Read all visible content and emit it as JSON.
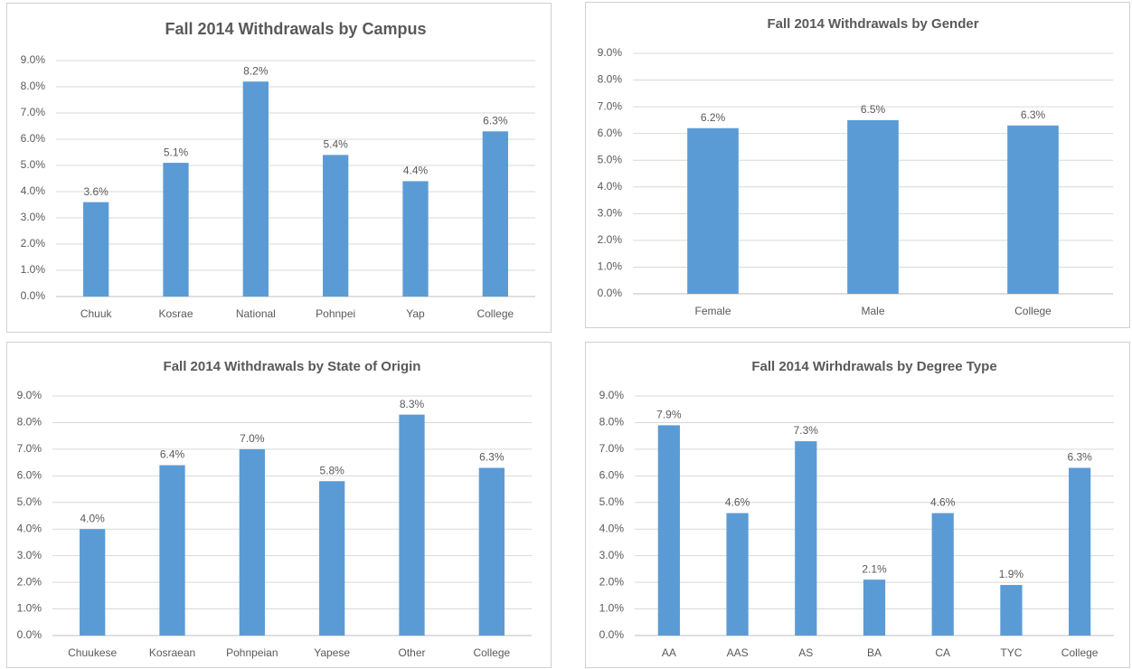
{
  "chart_data": [
    {
      "type": "bar",
      "title": "Fall 2014 Withdrawals by Campus",
      "categories": [
        "Chuuk",
        "Kosrae",
        "National",
        "Pohnpei",
        "Yap",
        "College"
      ],
      "values": [
        3.6,
        5.1,
        8.2,
        5.4,
        4.4,
        6.3
      ],
      "value_labels": [
        "3.6%",
        "5.1%",
        "8.2%",
        "5.4%",
        "4.4%",
        "6.3%"
      ],
      "color": "#5b9bd5",
      "ylim": [
        0,
        9
      ],
      "yticks": [
        {
          "value": 0,
          "label": "0.0%"
        },
        {
          "value": 1,
          "label": "1.0%"
        },
        {
          "value": 2,
          "label": "2.0%"
        },
        {
          "value": 3,
          "label": "3.0%"
        },
        {
          "value": 4,
          "label": "4.0%"
        },
        {
          "value": 5,
          "label": "5.0%"
        },
        {
          "value": 6,
          "label": "6.0%"
        },
        {
          "value": 7,
          "label": "7.0%"
        },
        {
          "value": 8,
          "label": "8.0%"
        },
        {
          "value": 9,
          "label": "9.0%"
        }
      ],
      "grid": true
    },
    {
      "type": "bar",
      "title": "Fall 2014 Withdrawals by Gender",
      "categories": [
        "Female",
        "Male",
        "College"
      ],
      "values": [
        6.2,
        6.5,
        6.3
      ],
      "value_labels": [
        "6.2%",
        "6.5%",
        "6.3%"
      ],
      "color": "#5b9bd5",
      "ylim": [
        0,
        9
      ],
      "yticks": [
        {
          "value": 0,
          "label": "0.0%"
        },
        {
          "value": 1,
          "label": "1.0%"
        },
        {
          "value": 2,
          "label": "2.0%"
        },
        {
          "value": 3,
          "label": "3.0%"
        },
        {
          "value": 4,
          "label": "4.0%"
        },
        {
          "value": 5,
          "label": "5.0%"
        },
        {
          "value": 6,
          "label": "6.0%"
        },
        {
          "value": 7,
          "label": "7.0%"
        },
        {
          "value": 8,
          "label": "8.0%"
        },
        {
          "value": 9,
          "label": "9.0%"
        }
      ],
      "grid": true
    },
    {
      "type": "bar",
      "title": "Fall 2014 Withdrawals by State of Origin",
      "categories": [
        "Chuukese",
        "Kosraean",
        "Pohnpeian",
        "Yapese",
        "Other",
        "College"
      ],
      "values": [
        4.0,
        6.4,
        7.0,
        5.8,
        8.3,
        6.3
      ],
      "value_labels": [
        "4.0%",
        "6.4%",
        "7.0%",
        "5.8%",
        "8.3%",
        "6.3%"
      ],
      "color": "#5b9bd5",
      "ylim": [
        0,
        9
      ],
      "yticks": [
        {
          "value": 0,
          "label": "0.0%"
        },
        {
          "value": 1,
          "label": "1.0%"
        },
        {
          "value": 2,
          "label": "2.0%"
        },
        {
          "value": 3,
          "label": "3.0%"
        },
        {
          "value": 4,
          "label": "4.0%"
        },
        {
          "value": 5,
          "label": "5.0%"
        },
        {
          "value": 6,
          "label": "6.0%"
        },
        {
          "value": 7,
          "label": "7.0%"
        },
        {
          "value": 8,
          "label": "8.0%"
        },
        {
          "value": 9,
          "label": "9.0%"
        }
      ],
      "grid": true
    },
    {
      "type": "bar",
      "title": "Fall 2014 Wirhdrawals by Degree Type",
      "categories": [
        "AA",
        "AAS",
        "AS",
        "BA",
        "CA",
        "TYC",
        "College"
      ],
      "values": [
        7.9,
        4.6,
        7.3,
        2.1,
        4.6,
        1.9,
        6.3
      ],
      "value_labels": [
        "7.9%",
        "4.6%",
        "7.3%",
        "2.1%",
        "4.6%",
        "1.9%",
        "6.3%"
      ],
      "color": "#5b9bd5",
      "ylim": [
        0,
        9
      ],
      "yticks": [
        {
          "value": 0,
          "label": "0.0%"
        },
        {
          "value": 1,
          "label": "1.0%"
        },
        {
          "value": 2,
          "label": "2.0%"
        },
        {
          "value": 3,
          "label": "3.0%"
        },
        {
          "value": 4,
          "label": "4.0%"
        },
        {
          "value": 5,
          "label": "5.0%"
        },
        {
          "value": 6,
          "label": "6.0%"
        },
        {
          "value": 7,
          "label": "7.0%"
        },
        {
          "value": 8,
          "label": "8.0%"
        },
        {
          "value": 9,
          "label": "9.0%"
        }
      ],
      "grid": true
    }
  ]
}
